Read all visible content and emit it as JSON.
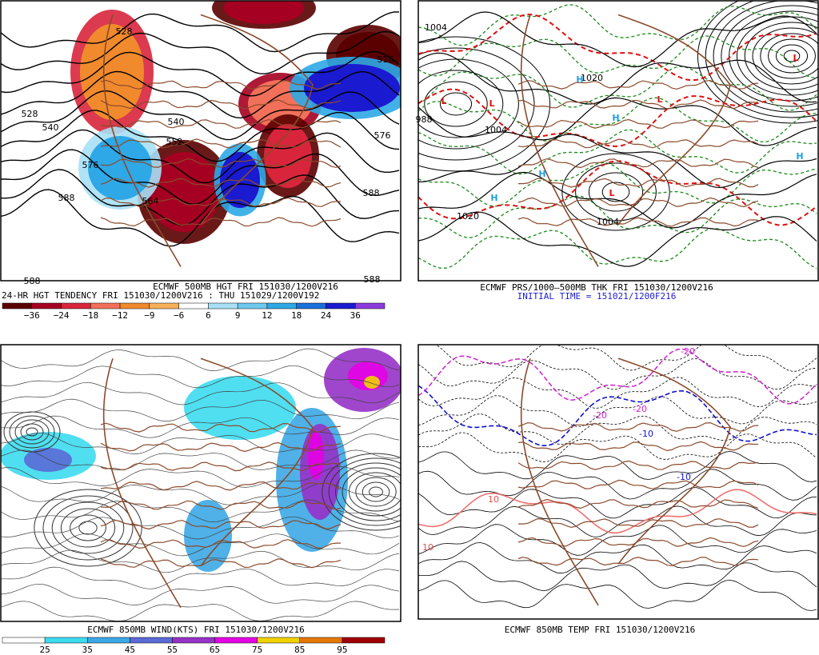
{
  "panels": [
    {
      "title": "ECMWF 500MB HGT FRI 151030/1200V216",
      "subtitle": "24-HR HGT TENDENCY FRI 151030/1200V216 : THU 151029/1200V192",
      "colorbar": {
        "labels": [
          "−36",
          "−24",
          "−18",
          "−12",
          "−9",
          "−6",
          "6",
          "9",
          "12",
          "18",
          "24",
          "36"
        ],
        "colors": [
          "#5a0000",
          "#a50021",
          "#d8253b",
          "#f2705a",
          "#f08a2c",
          "#f7b05a",
          "#ffffff",
          "#a8e0f5",
          "#6ec9f0",
          "#2ea8e6",
          "#1b6fd9",
          "#1a1ad0",
          "#8c3cdc"
        ]
      },
      "labels": [
        "528",
        "528",
        "516",
        "540",
        "540",
        "552",
        "564",
        "576",
        "576",
        "588",
        "588",
        "588",
        "588"
      ]
    },
    {
      "title": "ECMWF PRS/1000–500MB THK FRI 151030/1200V216",
      "subtitle": "INITIAL TIME = 151021/1200F216",
      "labels": [
        "1004",
        "1004",
        "1004",
        "1020",
        "1020",
        "988",
        "L",
        "L",
        "L",
        "L",
        "L",
        "H",
        "H",
        "H",
        "H",
        "H"
      ]
    },
    {
      "title": "ECMWF 850MB WIND(KTS) FRI 151030/1200V216",
      "colorbar": {
        "labels": [
          "25",
          "35",
          "45",
          "55",
          "65",
          "75",
          "85",
          "95"
        ],
        "colors": [
          "#ffffff",
          "#3cdcf0",
          "#3ca8e6",
          "#5a6ad6",
          "#9632c8",
          "#e600e6",
          "#f0d200",
          "#e67800",
          "#a00000"
        ]
      }
    },
    {
      "title": "ECMWF 850MB TEMP FRI 151030/1200V216",
      "labels": [
        "-20",
        "-20",
        "-20",
        "-10",
        "-10",
        "10",
        "10"
      ]
    }
  ]
}
